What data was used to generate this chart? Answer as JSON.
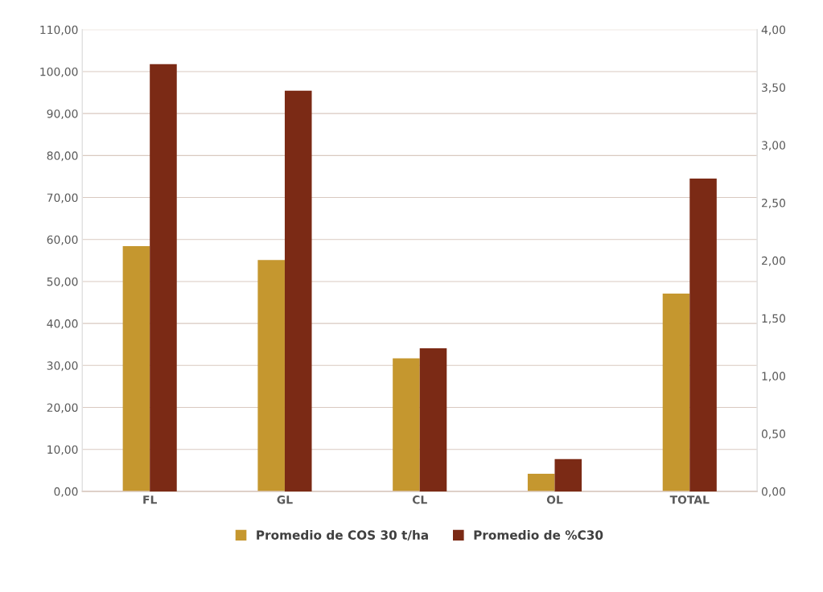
{
  "chart_data": {
    "type": "bar",
    "categories": [
      "FL",
      "GL",
      "CL",
      "OL",
      "TOTAL"
    ],
    "series": [
      {
        "name": "Promedio de COS 30 t/ha",
        "color": "#c5972f",
        "values": [
          58.4,
          55.1,
          31.7,
          4.2,
          47.1
        ]
      },
      {
        "name": "Promedio de %C30",
        "color": "#7b2a15",
        "axis": "y2",
        "values": [
          3.7,
          3.47,
          1.24,
          0.28,
          2.71
        ]
      }
    ],
    "ylim": [
      0,
      110
    ],
    "yticks": [
      {
        "value": 0,
        "label": "0,00"
      },
      {
        "value": 10,
        "label": "10,00"
      },
      {
        "value": 20,
        "label": "20,00"
      },
      {
        "value": 30,
        "label": "30,00"
      },
      {
        "value": 40,
        "label": "40,00"
      },
      {
        "value": 50,
        "label": "50,00"
      },
      {
        "value": 60,
        "label": "60,00"
      },
      {
        "value": 70,
        "label": "70,00"
      },
      {
        "value": 80,
        "label": "80,00"
      },
      {
        "value": 90,
        "label": "90,00"
      },
      {
        "value": 100,
        "label": "100,00"
      },
      {
        "value": 110,
        "label": "110,00"
      }
    ],
    "y2lim": [
      0,
      4
    ],
    "y2ticks": [
      {
        "value": 0,
        "label": "0,00"
      },
      {
        "value": 0.5,
        "label": "0,50"
      },
      {
        "value": 1,
        "label": "1,00"
      },
      {
        "value": 1.5,
        "label": "1,50"
      },
      {
        "value": 2,
        "label": "2,00"
      },
      {
        "value": 2.5,
        "label": "2,50"
      },
      {
        "value": 3,
        "label": "3,00"
      },
      {
        "value": 3.5,
        "label": "3,50"
      },
      {
        "value": 4,
        "label": "4,00"
      }
    ],
    "grid": "y",
    "legend": "bottom"
  }
}
